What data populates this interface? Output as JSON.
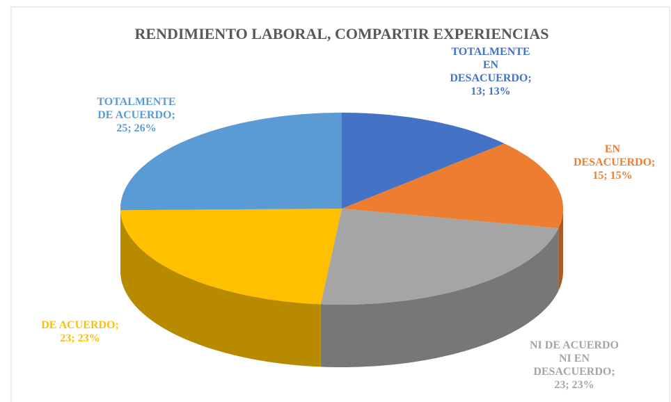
{
  "chart_data": {
    "type": "pie3d",
    "title": "RENDIMIENTO LABORAL, COMPARTIR EXPERIENCIAS",
    "categories": [
      "TOTALMENTE EN DESACUERDO;",
      "EN DESACUERDO;",
      "NI DE ACUERDO NI EN DESACUERDO;",
      "DE ACUERDO;",
      "TOTALMENTE DE ACUERDO;"
    ],
    "values": [
      13,
      15,
      23,
      23,
      25
    ],
    "value_labels": [
      "13; 13%",
      "15; 15%",
      "23; 23%",
      "23; 23%",
      "25; 26%"
    ],
    "colors": [
      "#4472c4",
      "#ed7d31",
      "#a5a5a5",
      "#ffc000",
      "#5b9bd5"
    ]
  }
}
